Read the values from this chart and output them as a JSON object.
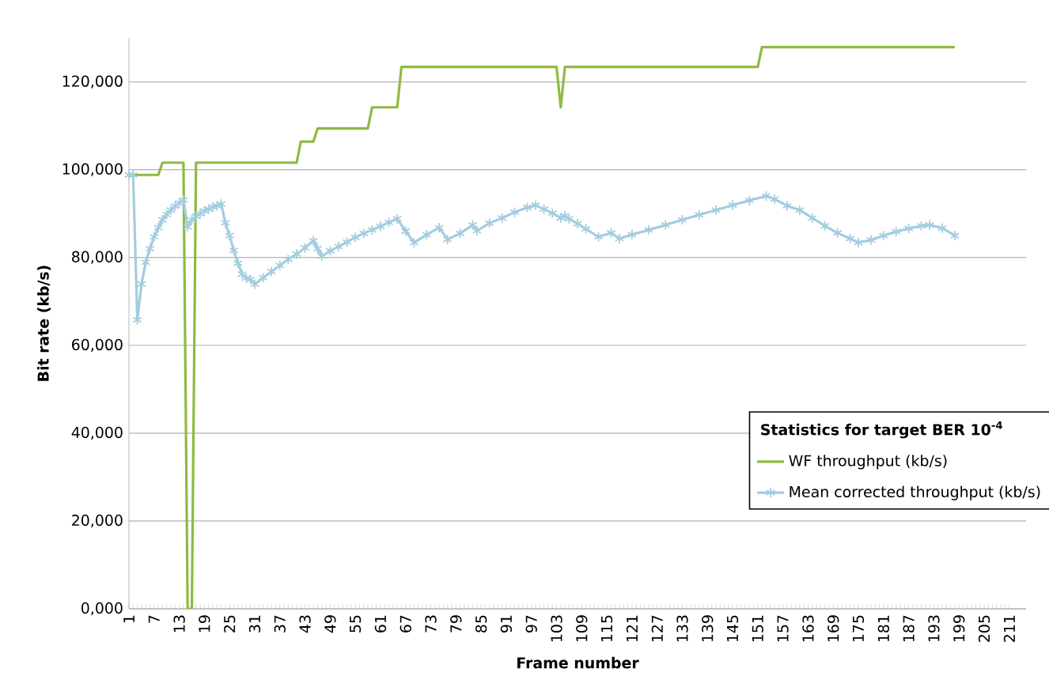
{
  "chart_data": {
    "type": "line",
    "xlabel": "Frame number",
    "ylabel": "Bit rate (kb/s)",
    "legend_title": "Statistics for target BER 10$^{-4}$",
    "xlim": [
      1,
      215
    ],
    "xticks": [
      1,
      7,
      13,
      19,
      25,
      31,
      37,
      43,
      49,
      55,
      61,
      67,
      73,
      79,
      85,
      91,
      97,
      103,
      109,
      115,
      121,
      127,
      133,
      139,
      145,
      151,
      157,
      163,
      169,
      175,
      181,
      187,
      193,
      199,
      205,
      211
    ],
    "ylim": [
      0,
      130000
    ],
    "yticks": [
      {
        "value": 0,
        "label": "0,000"
      },
      {
        "value": 20000,
        "label": "20,000"
      },
      {
        "value": 40000,
        "label": "40,000"
      },
      {
        "value": 60000,
        "label": "60,000"
      },
      {
        "value": 80000,
        "label": "80,000"
      },
      {
        "value": 100000,
        "label": "100,000"
      },
      {
        "value": 120000,
        "label": "120,000"
      }
    ],
    "grid": "y",
    "legend": "right",
    "line_style": "solid",
    "series": [
      {
        "name": "WF throughput (kb/s)",
        "color": "#8fb944",
        "x": [
          1,
          8,
          9,
          14,
          15,
          16,
          17,
          41,
          42,
          45,
          46,
          58,
          59,
          65,
          66,
          103,
          104,
          105,
          151,
          152,
          198
        ],
        "values": [
          98800,
          98800,
          101600,
          101600,
          0,
          0,
          101600,
          101600,
          106400,
          106400,
          109400,
          109400,
          114200,
          114200,
          123400,
          123400,
          114200,
          123400,
          123400,
          127900,
          127900
        ]
      },
      {
        "name": "Mean corrected throughput (kb/s)",
        "color": "#a3cddf",
        "marker": "cross",
        "x": [
          1,
          2,
          3,
          4,
          5,
          6,
          7,
          8,
          9,
          10,
          11,
          12,
          13,
          14,
          15,
          16,
          17,
          18,
          19,
          20,
          21,
          22,
          23,
          24,
          25,
          26,
          27,
          28,
          29,
          30,
          31,
          33,
          35,
          37,
          39,
          41,
          43,
          45,
          46,
          47,
          49,
          51,
          53,
          55,
          57,
          59,
          61,
          63,
          65,
          67,
          69,
          72,
          75,
          77,
          80,
          83,
          84,
          87,
          90,
          93,
          96,
          98,
          100,
          102,
          104,
          105,
          106,
          108,
          110,
          113,
          116,
          118,
          121,
          125,
          129,
          133,
          137,
          141,
          145,
          149,
          153,
          155,
          158,
          161,
          164,
          167,
          170,
          173,
          175,
          178,
          181,
          184,
          187,
          190,
          192,
          195,
          198
        ],
        "values": [
          98800,
          98800,
          65800,
          74000,
          78900,
          82000,
          84700,
          86800,
          88600,
          89800,
          90800,
          91700,
          92400,
          93100,
          87000,
          88600,
          89400,
          90000,
          90600,
          91000,
          91500,
          91800,
          92200,
          87900,
          85000,
          81600,
          78700,
          76200,
          75300,
          75000,
          73900,
          75400,
          76800,
          78200,
          79600,
          80800,
          82200,
          83800,
          82000,
          80300,
          81500,
          82500,
          83500,
          84600,
          85500,
          86300,
          87100,
          88000,
          88800,
          86000,
          83400,
          85200,
          86800,
          84100,
          85500,
          87400,
          86100,
          87800,
          89000,
          90300,
          91400,
          91900,
          91000,
          90100,
          89000,
          89500,
          88800,
          87700,
          86500,
          84700,
          85600,
          84300,
          85200,
          86300,
          87400,
          88600,
          89700,
          90800,
          91900,
          93000,
          94000,
          93300,
          91800,
          90800,
          89000,
          87200,
          85600,
          84300,
          83400,
          84000,
          85000,
          85900,
          86600,
          87200,
          87400,
          86700,
          85000
        ]
      }
    ]
  }
}
